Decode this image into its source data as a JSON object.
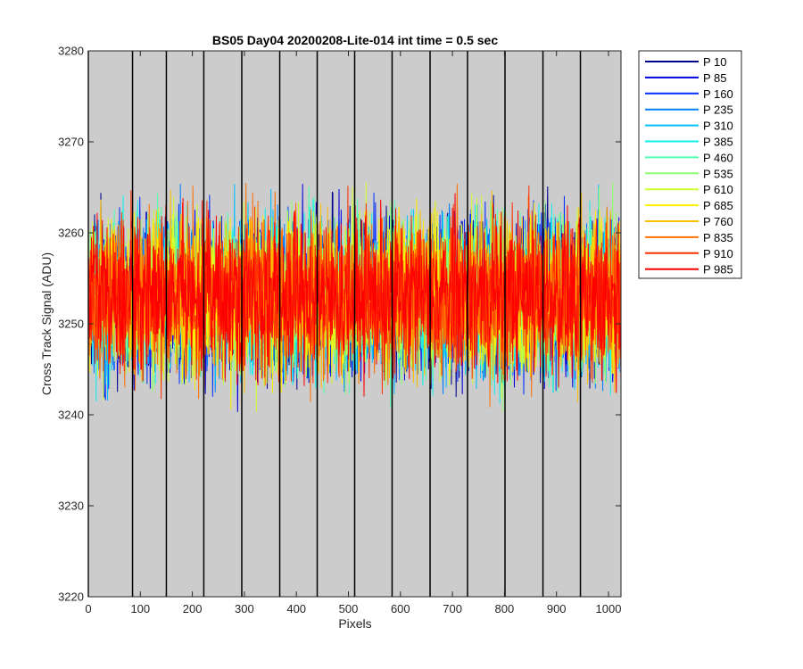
{
  "chart_data": {
    "type": "line",
    "title": "BS05 Day04 20200208-Lite-014 int time = 0.5 sec",
    "xlabel": "Pixels",
    "ylabel": "Cross Track Signal (ADU)",
    "xlim": [
      0,
      1024
    ],
    "ylim": [
      3220,
      3280
    ],
    "x_ticks": [
      0,
      100,
      200,
      300,
      400,
      500,
      600,
      700,
      800,
      900,
      1000
    ],
    "y_ticks": [
      3220,
      3230,
      3240,
      3250,
      3260,
      3270,
      3280
    ],
    "x_tick_labels": [
      "0",
      "100",
      "200",
      "300",
      "400",
      "500",
      "600",
      "700",
      "800",
      "900",
      "1000"
    ],
    "y_tick_labels": [
      "3220",
      "3230",
      "3240",
      "3250",
      "3260",
      "3270",
      "3280"
    ],
    "vertical_markers_x": [
      0,
      85,
      150,
      222,
      295,
      368,
      440,
      512,
      584,
      657,
      729,
      801,
      874,
      946
    ],
    "background_color": "#cccccc",
    "grid": false,
    "legend_position": "outside-right",
    "series_mean": 3253,
    "series_spread": 7,
    "series_x_range": [
      1,
      1024
    ],
    "series": [
      {
        "name": "P 10",
        "color": "#00008f"
      },
      {
        "name": "P 85",
        "color": "#0000df"
      },
      {
        "name": "P 160",
        "color": "#0030ff"
      },
      {
        "name": "P 235",
        "color": "#0080ff"
      },
      {
        "name": "P 310",
        "color": "#00c0ff"
      },
      {
        "name": "P 385",
        "color": "#10f0ef"
      },
      {
        "name": "P 460",
        "color": "#50ffaf"
      },
      {
        "name": "P 535",
        "color": "#90ff6f"
      },
      {
        "name": "P 610",
        "color": "#d0ff30"
      },
      {
        "name": "P 685",
        "color": "#ffef00"
      },
      {
        "name": "P 760",
        "color": "#ffbf00"
      },
      {
        "name": "P 835",
        "color": "#ff7000"
      },
      {
        "name": "P 910",
        "color": "#ff3000"
      },
      {
        "name": "P 985",
        "color": "#ff0000"
      }
    ]
  }
}
